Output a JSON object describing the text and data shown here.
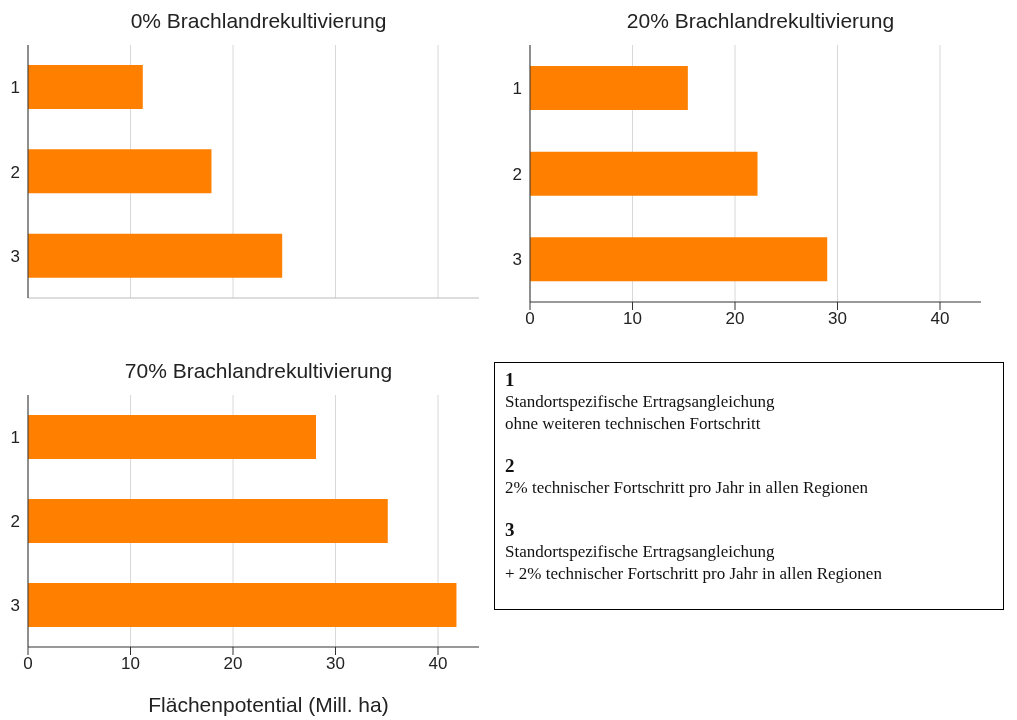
{
  "chart_data": [
    {
      "type": "bar",
      "orientation": "horizontal",
      "title": "0% Brachlandrekultivierung",
      "categories": [
        "1",
        "2",
        "3"
      ],
      "values": [
        11.2,
        17.9,
        24.8
      ],
      "color": "#ff8000",
      "xlim": [
        0,
        44
      ],
      "xticks": [
        0,
        10,
        20,
        30,
        40
      ],
      "grid": "x",
      "tick_labels": "y"
    },
    {
      "type": "bar",
      "orientation": "horizontal",
      "title": "20% Brachlandrekultivierung",
      "categories": [
        "1",
        "2",
        "3"
      ],
      "values": [
        15.4,
        22.2,
        29.0
      ],
      "color": "#ff8000",
      "xlim": [
        0,
        44
      ],
      "xticks": [
        0,
        10,
        20,
        30,
        40
      ],
      "grid": "x"
    },
    {
      "type": "bar",
      "orientation": "horizontal",
      "title": "70% Brachlandrekultivierung",
      "xlabel": "Flächenpotential (Mill. ha)",
      "categories": [
        "1",
        "2",
        "3"
      ],
      "values": [
        28.1,
        35.1,
        41.8
      ],
      "color": "#ff8000",
      "xlim": [
        0,
        44
      ],
      "xticks": [
        0,
        10,
        20,
        30,
        40
      ],
      "grid": "x"
    },
    {
      "type": "other",
      "annotations": [
        "1\nStandortspezifische Ertragsangleichung\nohne weiteren technischen Fortschritt",
        "2\n2% technischer Fortschritt pro Jahr in allen Regionen",
        "3\nStandortspezifische Ertragsangleichung\n+ 2% technischer Fortschritt pro Jahr in allen Regionen"
      ]
    }
  ]
}
